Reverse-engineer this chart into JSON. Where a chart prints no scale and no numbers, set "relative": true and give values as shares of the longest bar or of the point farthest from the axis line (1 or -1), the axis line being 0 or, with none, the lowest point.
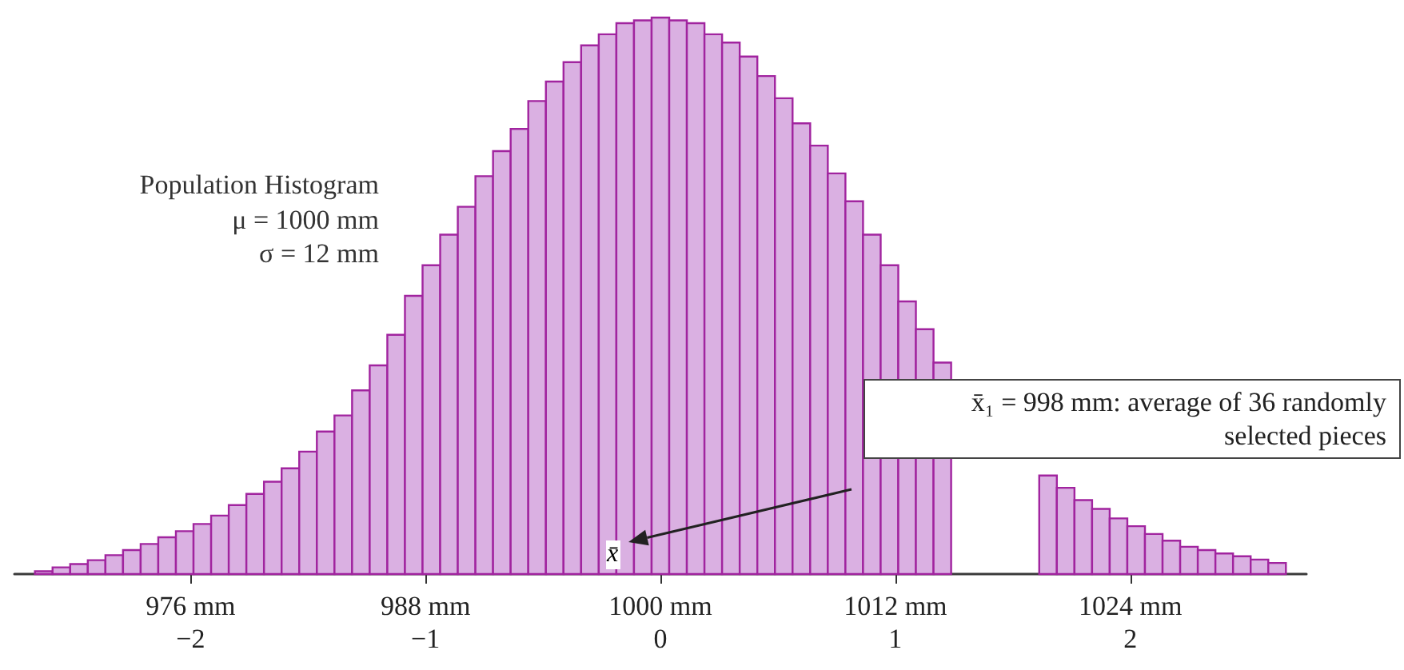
{
  "chart_data": {
    "type": "bar",
    "title": "Population Histogram",
    "relative": true,
    "x": [
      968.5,
      969.4,
      970.3,
      971.2,
      972.1,
      973,
      973.9,
      974.8,
      975.7,
      976.6,
      977.5,
      978.4,
      979.3,
      980.2,
      981.1,
      982,
      982.9,
      983.8,
      984.7,
      985.6,
      986.5,
      987.4,
      988.3,
      989.2,
      990.1,
      991,
      991.9,
      992.8,
      993.7,
      994.6,
      995.5,
      996.4,
      997.3,
      998.2,
      999.1,
      1000,
      1000.9,
      1001.8,
      1002.7,
      1003.6,
      1004.5,
      1005.4,
      1006.3,
      1007.2,
      1008.1,
      1009,
      1009.9,
      1010.8,
      1011.7,
      1012.6,
      1013.5,
      1014.4,
      1015.3,
      1016.2,
      1017.1,
      1018,
      1018.9,
      1019.8,
      1020.7,
      1021.6,
      1022.5,
      1023.4,
      1024.3,
      1025.2,
      1026.1,
      1027,
      1027.9,
      1028.8,
      1029.7,
      1030.6,
      1031.5
    ],
    "values": [
      0.005,
      0.012,
      0.018,
      0.025,
      0.034,
      0.043,
      0.054,
      0.066,
      0.077,
      0.09,
      0.105,
      0.124,
      0.144,
      0.166,
      0.19,
      0.22,
      0.256,
      0.285,
      0.33,
      0.375,
      0.43,
      0.5,
      0.555,
      0.61,
      0.66,
      0.715,
      0.76,
      0.8,
      0.85,
      0.885,
      0.92,
      0.95,
      0.97,
      0.99,
      0.995,
      1,
      0.995,
      0.99,
      0.97,
      0.955,
      0.93,
      0.895,
      0.855,
      0.81,
      0.77,
      0.72,
      0.67,
      0.61,
      0.555,
      0.49,
      0.44,
      0.38,
      null,
      null,
      null,
      null,
      null,
      0.177,
      0.155,
      0.133,
      0.117,
      0.1,
      0.086,
      0.072,
      0.06,
      0.049,
      0.043,
      0.037,
      0.032,
      0.026,
      0.02
    ],
    "color": "#dab0e2",
    "xlim": [
      967,
      1033
    ],
    "xticks": [
      {
        "value": 976,
        "label": "976 mm"
      },
      {
        "value": 988,
        "label": "988 mm"
      },
      {
        "value": 1000,
        "label": "1000 mm"
      },
      {
        "value": 1012,
        "label": "1012 mm"
      },
      {
        "value": 1024,
        "label": "1024 mm"
      }
    ],
    "x2lim": [
      -2.75,
      2.75
    ],
    "x2ticks": [
      {
        "value": -2,
        "label": "−2"
      },
      {
        "value": -1,
        "label": "−1"
      },
      {
        "value": 0,
        "label": "0"
      },
      {
        "value": 1,
        "label": "1"
      },
      {
        "value": 2,
        "label": "2"
      }
    ],
    "annotations": [
      "μ = 1000 mm",
      "σ = 12 mm",
      "x̄₁ = 998 mm: average of 36 randomly\nselected pieces",
      {
        "text": "x̄",
        "x": 998,
        "y": 0
      }
    ],
    "grid": false
  }
}
